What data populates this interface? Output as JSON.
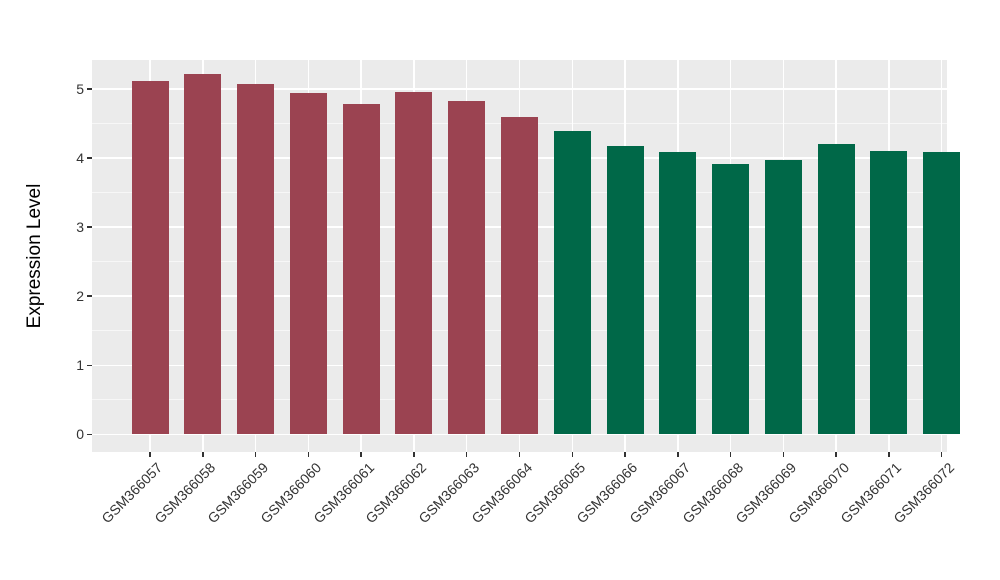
{
  "chart_data": {
    "type": "bar",
    "title": "",
    "xlabel": "",
    "ylabel": "Expression Level",
    "categories": [
      "GSM366057",
      "GSM366058",
      "GSM366059",
      "GSM366060",
      "GSM366061",
      "GSM366062",
      "GSM366063",
      "GSM366064",
      "GSM366065",
      "GSM366066",
      "GSM366067",
      "GSM366068",
      "GSM366069",
      "GSM366070",
      "GSM366071",
      "GSM366072"
    ],
    "values": [
      5.12,
      5.21,
      5.07,
      4.94,
      4.78,
      4.95,
      4.83,
      4.59,
      4.39,
      4.17,
      4.09,
      3.91,
      3.97,
      4.21,
      4.1,
      4.09
    ],
    "colors": [
      "#9b4351",
      "#9b4351",
      "#9b4351",
      "#9b4351",
      "#9b4351",
      "#9b4351",
      "#9b4351",
      "#9b4351",
      "#006848",
      "#006848",
      "#006848",
      "#006848",
      "#006848",
      "#006848",
      "#006848",
      "#006848"
    ],
    "group_colors": {
      "left_group": "#9b4351",
      "right_group": "#006848"
    },
    "yticks": [
      0,
      1,
      2,
      3,
      4,
      5
    ],
    "minor_ticks": [
      0.5,
      1.5,
      2.5,
      3.5,
      4.5
    ],
    "ylim": [
      0,
      5.42
    ],
    "grid": true,
    "legend": "none",
    "panel_bg": "#ebebeb",
    "gridline_color": "#ffffff",
    "tick_color": "#333333",
    "axis_text_color": "#333333"
  }
}
